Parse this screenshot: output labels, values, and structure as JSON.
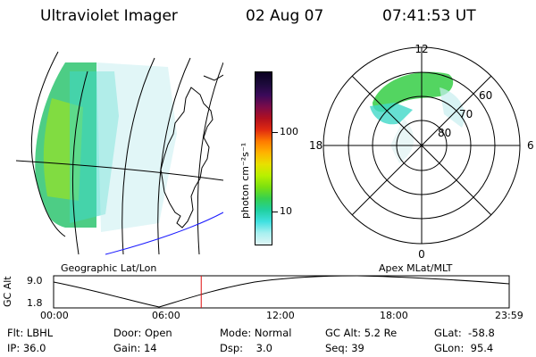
{
  "header": {
    "title": "Ultraviolet Imager",
    "date": "02 Aug 07",
    "time": "07:41:53 UT"
  },
  "geo_panel": {
    "caption": "Geographic Lat/Lon"
  },
  "polar_panel": {
    "caption": "Apex MLat/MLT",
    "mlt_labels": {
      "top": "12",
      "left": "18",
      "right": "6",
      "bottom": "0"
    },
    "lat_labels": [
      "60",
      "70",
      "80"
    ]
  },
  "colorbar": {
    "unit_label": "photon cm⁻²s⁻¹",
    "ticks": [
      "100",
      "10"
    ],
    "colors": [
      "#0a0020",
      "#1c0a3a",
      "#3b0a5a",
      "#7a0b4a",
      "#b01020",
      "#e02a10",
      "#ff7a00",
      "#ffb300",
      "#e8e000",
      "#b8f000",
      "#7ae010",
      "#36d050",
      "#20d0a0",
      "#40e0e0",
      "#a8f0f0",
      "#dff5f5"
    ]
  },
  "altitude_plot": {
    "ylabel": "GC Alt",
    "yticks": [
      "9.0",
      "1.8"
    ],
    "xticks": [
      "00:00",
      "06:00",
      "12:00",
      "18:00",
      "23:59"
    ],
    "current_time_fraction": 0.324
  },
  "info": {
    "flt": "Flt: LBHL",
    "ip": "IP: 36.0",
    "door": "Door: Open",
    "gain": "Gain: 14",
    "mode": "Mode: Normal",
    "dsp": "Dsp:    3.0",
    "gcalt": "GC Alt: 5.2 Re",
    "seq": "Seq: 39",
    "glat": "GLat:  -58.8",
    "glon": "GLon:  95.4"
  }
}
